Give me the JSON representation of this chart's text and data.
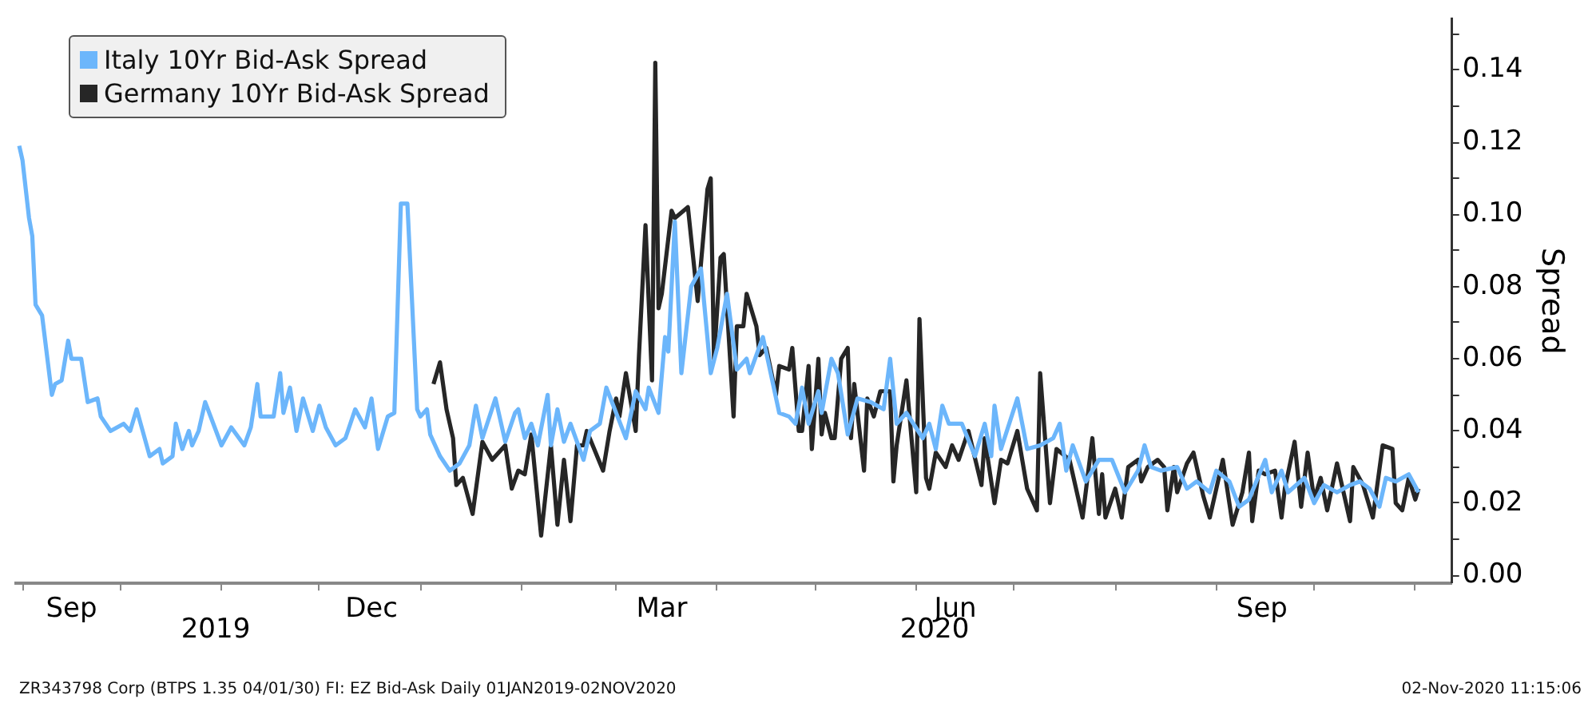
{
  "chart_data": {
    "type": "line",
    "ylabel": "Spread",
    "legend": "top left",
    "xlim": [
      "2019-08-30",
      "2020-11-12"
    ],
    "ylim": [
      -0.002,
      0.154
    ],
    "xticks": [
      {
        "value": "2019-09-01",
        "label": null
      },
      {
        "value": "2019-09-16",
        "label": "Sep"
      },
      {
        "value": "2019-10-01",
        "label": null
      },
      {
        "value": "2019-11-01",
        "label": null
      },
      {
        "value": "2019-12-01",
        "label": null
      },
      {
        "value": "2019-12-17",
        "label": "Dec"
      },
      {
        "value": "2020-01-01",
        "label": null
      },
      {
        "value": "2020-02-01",
        "label": null
      },
      {
        "value": "2020-03-01",
        "label": null
      },
      {
        "value": "2020-03-15",
        "label": "Mar"
      },
      {
        "value": "2020-04-01",
        "label": null
      },
      {
        "value": "2020-05-01",
        "label": null
      },
      {
        "value": "2020-06-01",
        "label": null
      },
      {
        "value": "2020-06-13",
        "label": "Jun"
      },
      {
        "value": "2020-07-01",
        "label": null
      },
      {
        "value": "2020-08-01",
        "label": null
      },
      {
        "value": "2020-09-01",
        "label": null
      },
      {
        "value": "2020-09-15",
        "label": "Sep"
      },
      {
        "value": "2020-10-01",
        "label": null
      },
      {
        "value": "2020-11-01",
        "label": null
      }
    ],
    "yticks": [
      {
        "value": 0,
        "label": "0.00"
      },
      {
        "value": 0.01,
        "label": null
      },
      {
        "value": 0.02,
        "label": "0.02"
      },
      {
        "value": 0.03,
        "label": null
      },
      {
        "value": 0.04,
        "label": "0.04"
      },
      {
        "value": 0.05,
        "label": null
      },
      {
        "value": 0.06,
        "label": "0.06"
      },
      {
        "value": 0.07,
        "label": null
      },
      {
        "value": 0.08,
        "label": "0.08"
      },
      {
        "value": 0.09,
        "label": null
      },
      {
        "value": 0.1,
        "label": "0.10"
      },
      {
        "value": 0.11,
        "label": null
      },
      {
        "value": 0.12,
        "label": "0.12"
      },
      {
        "value": 0.13,
        "label": null
      },
      {
        "value": 0.14,
        "label": "0.14"
      },
      {
        "value": 0.15,
        "label": null
      }
    ],
    "annotations": [
      "2019",
      "2020",
      "ZR343798 Corp (BTPS 1.35 04/01/30) FI: EZ Bid-Ask  Daily 01JAN2019-02NOV2020",
      "02-Nov-2020 11:15:06"
    ],
    "series": [
      {
        "name": "Italy 10Yr Bid-Ask Spread",
        "color": "#6cb6fb",
        "x": [
          "2019-08-31",
          "2019-09-01",
          "2019-09-03",
          "2019-09-04",
          "2019-09-05",
          "2019-09-07",
          "2019-09-10",
          "2019-09-11",
          "2019-09-13",
          "2019-09-15",
          "2019-09-16",
          "2019-09-19",
          "2019-09-21",
          "2019-09-24",
          "2019-09-25",
          "2019-09-28",
          "2019-10-02",
          "2019-10-04",
          "2019-10-06",
          "2019-10-10",
          "2019-10-13",
          "2019-10-14",
          "2019-10-17",
          "2019-10-18",
          "2019-10-20",
          "2019-10-22",
          "2019-10-23",
          "2019-10-25",
          "2019-10-27",
          "2019-11-01",
          "2019-11-04",
          "2019-11-08",
          "2019-11-10",
          "2019-11-12",
          "2019-11-13",
          "2019-11-17",
          "2019-11-19",
          "2019-11-20",
          "2019-11-22",
          "2019-11-24",
          "2019-11-26",
          "2019-11-29",
          "2019-12-01",
          "2019-12-03",
          "2019-12-06",
          "2019-12-09",
          "2019-12-12",
          "2019-12-15",
          "2019-12-17",
          "2019-12-19",
          "2019-12-22",
          "2019-12-24",
          "2019-12-26",
          "2019-12-28",
          "2019-12-31",
          "2020-01-01",
          "2020-01-03",
          "2020-01-04",
          "2020-01-07",
          "2020-01-10",
          "2020-01-13",
          "2020-01-16",
          "2020-01-18",
          "2020-01-20",
          "2020-01-24",
          "2020-01-27",
          "2020-01-30",
          "2020-01-31",
          "2020-02-02",
          "2020-02-04",
          "2020-02-06",
          "2020-02-09",
          "2020-02-10",
          "2020-02-12",
          "2020-02-14",
          "2020-02-16",
          "2020-02-20",
          "2020-02-22",
          "2020-02-25",
          "2020-02-27",
          "2020-03-01",
          "2020-03-04",
          "2020-03-07",
          "2020-03-10",
          "2020-03-11",
          "2020-03-14",
          "2020-03-16",
          "2020-03-17",
          "2020-03-19",
          "2020-03-21",
          "2020-03-24",
          "2020-03-27",
          "2020-03-30",
          "2020-04-01",
          "2020-04-04",
          "2020-04-07",
          "2020-04-10",
          "2020-04-11",
          "2020-04-15",
          "2020-04-20",
          "2020-04-23",
          "2020-04-25",
          "2020-04-27",
          "2020-04-29",
          "2020-05-02",
          "2020-05-03",
          "2020-05-06",
          "2020-05-08",
          "2020-05-11",
          "2020-05-14",
          "2020-05-18",
          "2020-05-22",
          "2020-05-24",
          "2020-05-26",
          "2020-05-29",
          "2020-06-03",
          "2020-06-05",
          "2020-06-07",
          "2020-06-09",
          "2020-06-11",
          "2020-06-15",
          "2020-06-19",
          "2020-06-22",
          "2020-06-24",
          "2020-06-25",
          "2020-06-27",
          "2020-07-02",
          "2020-07-05",
          "2020-07-09",
          "2020-07-13",
          "2020-07-15",
          "2020-07-17",
          "2020-07-19",
          "2020-07-23",
          "2020-07-27",
          "2020-07-31",
          "2020-08-04",
          "2020-08-08",
          "2020-08-10",
          "2020-08-12",
          "2020-08-15",
          "2020-08-20",
          "2020-08-23",
          "2020-08-26",
          "2020-08-30",
          "2020-09-01",
          "2020-09-05",
          "2020-09-08",
          "2020-09-11",
          "2020-09-16",
          "2020-09-18",
          "2020-09-21",
          "2020-09-23",
          "2020-09-28",
          "2020-10-01",
          "2020-10-04",
          "2020-10-08",
          "2020-10-12",
          "2020-10-15",
          "2020-10-18",
          "2020-10-21",
          "2020-10-23",
          "2020-10-26",
          "2020-10-30",
          "2020-11-02"
        ],
        "values": [
          0.119,
          0.115,
          0.099,
          0.094,
          0.075,
          0.072,
          0.05,
          0.053,
          0.054,
          0.065,
          0.06,
          0.06,
          0.048,
          0.049,
          0.044,
          0.04,
          0.042,
          0.04,
          0.046,
          0.033,
          0.035,
          0.031,
          0.033,
          0.042,
          0.035,
          0.04,
          0.036,
          0.04,
          0.048,
          0.036,
          0.041,
          0.036,
          0.041,
          0.053,
          0.044,
          0.044,
          0.056,
          0.045,
          0.052,
          0.04,
          0.049,
          0.04,
          0.047,
          0.041,
          0.036,
          0.038,
          0.046,
          0.041,
          0.049,
          0.035,
          0.044,
          0.045,
          0.103,
          0.103,
          0.046,
          0.044,
          0.046,
          0.039,
          0.033,
          0.029,
          0.031,
          0.036,
          0.047,
          0.038,
          0.049,
          0.037,
          0.045,
          0.046,
          0.038,
          0.042,
          0.036,
          0.05,
          0.036,
          0.046,
          0.037,
          0.042,
          0.032,
          0.04,
          0.042,
          0.052,
          0.045,
          0.038,
          0.051,
          0.046,
          0.052,
          0.045,
          0.066,
          0.062,
          0.098,
          0.056,
          0.08,
          0.085,
          0.056,
          0.063,
          0.078,
          0.057,
          0.06,
          0.056,
          0.066,
          0.045,
          0.044,
          0.042,
          0.052,
          0.042,
          0.051,
          0.045,
          0.06,
          0.056,
          0.039,
          0.049,
          0.048,
          0.046,
          0.06,
          0.042,
          0.045,
          0.038,
          0.042,
          0.035,
          0.047,
          0.042,
          0.042,
          0.033,
          0.042,
          0.033,
          0.047,
          0.035,
          0.049,
          0.035,
          0.036,
          0.038,
          0.042,
          0.029,
          0.036,
          0.026,
          0.032,
          0.032,
          0.023,
          0.029,
          0.036,
          0.03,
          0.029,
          0.03,
          0.024,
          0.026,
          0.023,
          0.029,
          0.026,
          0.019,
          0.021,
          0.032,
          0.023,
          0.029,
          0.023,
          0.027,
          0.02,
          0.025,
          0.023,
          0.025,
          0.026,
          0.024,
          0.019,
          0.027,
          0.026,
          0.028,
          0.023
        ]
      },
      {
        "name": "Germany 10Yr Bid-Ask Spread",
        "color": "#262626",
        "x": [
          "2020-01-05",
          "2020-01-07",
          "2020-01-09",
          "2020-01-11",
          "2020-01-12",
          "2020-01-14",
          "2020-01-17",
          "2020-01-20",
          "2020-01-23",
          "2020-01-27",
          "2020-01-29",
          "2020-01-31",
          "2020-02-02",
          "2020-02-04",
          "2020-02-07",
          "2020-02-10",
          "2020-02-12",
          "2020-02-14",
          "2020-02-16",
          "2020-02-18",
          "2020-02-20",
          "2020-02-21",
          "2020-02-26",
          "2020-02-28",
          "2020-03-01",
          "2020-03-02",
          "2020-03-04",
          "2020-03-07",
          "2020-03-08",
          "2020-03-10",
          "2020-03-12",
          "2020-03-13",
          "2020-03-14",
          "2020-03-15",
          "2020-03-18",
          "2020-03-19",
          "2020-03-23",
          "2020-03-26",
          "2020-03-29",
          "2020-03-30",
          "2020-03-31",
          "2020-04-02",
          "2020-04-03",
          "2020-04-06",
          "2020-04-07",
          "2020-04-09",
          "2020-04-10",
          "2020-04-13",
          "2020-04-14",
          "2020-04-16",
          "2020-04-19",
          "2020-04-20",
          "2020-04-23",
          "2020-04-24",
          "2020-04-26",
          "2020-04-27",
          "2020-04-29",
          "2020-04-30",
          "2020-05-02",
          "2020-05-03",
          "2020-05-04",
          "2020-05-06",
          "2020-05-07",
          "2020-05-09",
          "2020-05-11",
          "2020-05-12",
          "2020-05-13",
          "2020-05-16",
          "2020-05-17",
          "2020-05-19",
          "2020-05-21",
          "2020-05-24",
          "2020-05-25",
          "2020-05-26",
          "2020-05-29",
          "2020-06-01",
          "2020-06-02",
          "2020-06-04",
          "2020-06-05",
          "2020-06-07",
          "2020-06-10",
          "2020-06-12",
          "2020-06-14",
          "2020-06-17",
          "2020-06-21",
          "2020-06-22",
          "2020-06-25",
          "2020-06-27",
          "2020-06-29",
          "2020-07-02",
          "2020-07-05",
          "2020-07-08",
          "2020-07-09",
          "2020-07-12",
          "2020-07-14",
          "2020-07-18",
          "2020-07-22",
          "2020-07-25",
          "2020-07-27",
          "2020-07-28",
          "2020-07-29",
          "2020-08-01",
          "2020-08-03",
          "2020-08-05",
          "2020-08-08",
          "2020-08-09",
          "2020-08-11",
          "2020-08-14",
          "2020-08-16",
          "2020-08-17",
          "2020-08-19",
          "2020-08-20",
          "2020-08-23",
          "2020-08-25",
          "2020-08-28",
          "2020-08-30",
          "2020-09-03",
          "2020-09-06",
          "2020-09-09",
          "2020-09-11",
          "2020-09-12",
          "2020-09-14",
          "2020-09-16",
          "2020-09-19",
          "2020-09-21",
          "2020-09-22",
          "2020-09-25",
          "2020-09-27",
          "2020-09-29",
          "2020-10-01",
          "2020-10-03",
          "2020-10-05",
          "2020-10-08",
          "2020-10-09",
          "2020-10-12",
          "2020-10-13",
          "2020-10-16",
          "2020-10-19",
          "2020-10-22",
          "2020-10-25",
          "2020-10-26",
          "2020-10-28",
          "2020-10-30",
          "2020-11-01",
          "2020-11-02"
        ],
        "values": [
          0.053,
          0.059,
          0.046,
          0.038,
          0.025,
          0.027,
          0.017,
          0.037,
          0.032,
          0.036,
          0.024,
          0.029,
          0.028,
          0.039,
          0.011,
          0.036,
          0.014,
          0.032,
          0.015,
          0.036,
          0.036,
          0.04,
          0.029,
          0.04,
          0.049,
          0.044,
          0.056,
          0.04,
          0.061,
          0.097,
          0.054,
          0.142,
          0.074,
          0.078,
          0.101,
          0.099,
          0.102,
          0.076,
          0.107,
          0.11,
          0.06,
          0.088,
          0.089,
          0.044,
          0.069,
          0.069,
          0.078,
          0.069,
          0.061,
          0.063,
          0.05,
          0.058,
          0.057,
          0.063,
          0.04,
          0.04,
          0.058,
          0.035,
          0.06,
          0.039,
          0.045,
          0.038,
          0.038,
          0.06,
          0.063,
          0.038,
          0.053,
          0.029,
          0.049,
          0.044,
          0.051,
          0.051,
          0.026,
          0.036,
          0.054,
          0.023,
          0.071,
          0.027,
          0.024,
          0.034,
          0.03,
          0.036,
          0.032,
          0.04,
          0.025,
          0.038,
          0.02,
          0.032,
          0.031,
          0.04,
          0.024,
          0.018,
          0.056,
          0.02,
          0.035,
          0.032,
          0.016,
          0.038,
          0.017,
          0.028,
          0.016,
          0.024,
          0.016,
          0.03,
          0.032,
          0.026,
          0.03,
          0.032,
          0.03,
          0.018,
          0.03,
          0.023,
          0.031,
          0.034,
          0.022,
          0.016,
          0.032,
          0.014,
          0.023,
          0.034,
          0.015,
          0.029,
          0.028,
          0.029,
          0.016,
          0.024,
          0.037,
          0.019,
          0.034,
          0.021,
          0.027,
          0.018,
          0.031,
          0.027,
          0.015,
          0.03,
          0.025,
          0.016,
          0.036,
          0.035,
          0.02,
          0.018,
          0.027,
          0.021,
          0.024
        ]
      }
    ]
  }
}
